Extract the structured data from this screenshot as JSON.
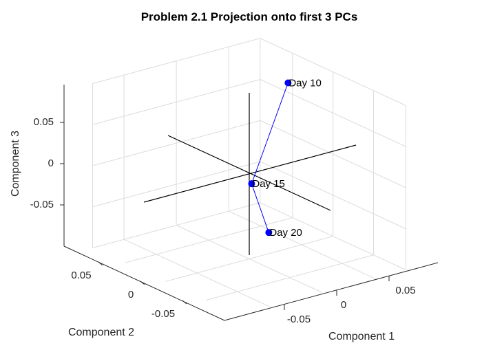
{
  "chart_data": {
    "type": "line",
    "title": "Problem 2.1 Projection onto first 3 PCs",
    "xlabel": "Component 1",
    "ylabel": "Component 2",
    "zlabel": "Component 3",
    "x_ticks": [
      "-0.05",
      "0",
      "0.05"
    ],
    "y_ticks": [
      "-0.05",
      "0",
      "0.05"
    ],
    "z_ticks": [
      "-0.05",
      "0",
      "0.05"
    ],
    "series_color": "#0000ff",
    "points": [
      {
        "label": "Day 10",
        "x": 0.044,
        "y": 0.009,
        "z": 0.095
      },
      {
        "label": "Day 15",
        "x": 0.003,
        "y": 0.001,
        "z": -0.01
      },
      {
        "label": "Day 20",
        "x": 0.014,
        "y": -0.006,
        "z": -0.07
      }
    ],
    "grid": true,
    "view": "3d"
  }
}
